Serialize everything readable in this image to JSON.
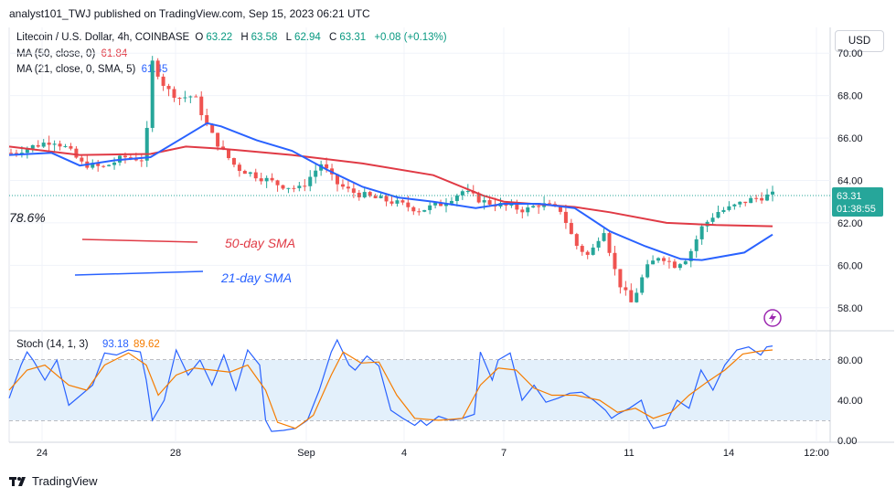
{
  "header": {
    "published": "analyst101_TWJ published on TradingView.com, Sep 15, 2023 06:21 UTC"
  },
  "legend": {
    "symbol": "Litecoin / U.S. Dollar, 4h, COINBASE",
    "o_label": "O",
    "o": "63.22",
    "h_label": "H",
    "h": "63.58",
    "l_label": "L",
    "l": "62.94",
    "c_label": "C",
    "c": "63.31",
    "change": "+0.08 (+0.13%)",
    "ma50_label": "MA (50, close, 0)",
    "ma50_value": "61.84",
    "ma21_label": "MA (21, close, 0, SMA, 5)",
    "ma21_value": "61.45"
  },
  "currency": "USD",
  "price_tag": {
    "value": "63.31",
    "countdown": "01:38:55"
  },
  "annotations": {
    "fib": "78.6%",
    "sma50": "50-day SMA",
    "sma21": "21-day SMA"
  },
  "stoch": {
    "label": "Stoch (14, 1, 3)",
    "k": "93.18",
    "d": "89.62"
  },
  "footer": {
    "brand": "TradingView"
  },
  "colors": {
    "up": "#26a69a",
    "down": "#ef5350",
    "ma50": "#e03a45",
    "ma21": "#2962ff",
    "stoch_k": "#2962ff",
    "stoch_d": "#f57c00",
    "band": "#e3f0fb"
  },
  "chart_data": {
    "type": "candlestick",
    "price_axis": {
      "range": [
        57,
        71
      ],
      "ticks": [
        "70.00",
        "68.00",
        "66.00",
        "64.00",
        "62.00",
        "60.00",
        "58.00"
      ]
    },
    "time_axis": {
      "ticks": [
        "24",
        "28",
        "Sep",
        "4",
        "7",
        "11",
        "14",
        "12:00"
      ]
    },
    "stoch_axis": {
      "range": [
        0,
        100
      ],
      "ticks": [
        "80.00",
        "40.00",
        "0.00"
      ],
      "band": [
        20,
        80
      ]
    },
    "price_path": [
      [
        0,
        65.3
      ],
      [
        3,
        65.6
      ],
      [
        6,
        65.9
      ],
      [
        8,
        65.5
      ],
      [
        10,
        64.8
      ],
      [
        13,
        64.6
      ],
      [
        16,
        65.1
      ],
      [
        19,
        65.0
      ],
      [
        20,
        69.6
      ],
      [
        22,
        68.3
      ],
      [
        24,
        67.9
      ],
      [
        26,
        68.0
      ],
      [
        28,
        66.4
      ],
      [
        30,
        65.4
      ],
      [
        32,
        64.6
      ],
      [
        35,
        64.2
      ],
      [
        38,
        63.8
      ],
      [
        41,
        63.6
      ],
      [
        44,
        64.8
      ],
      [
        46,
        63.9
      ],
      [
        48,
        63.5
      ],
      [
        51,
        63.2
      ],
      [
        54,
        63.0
      ],
      [
        56,
        62.8
      ],
      [
        58,
        62.6
      ],
      [
        61,
        62.9
      ],
      [
        64,
        63.5
      ],
      [
        67,
        63.0
      ],
      [
        70,
        62.8
      ],
      [
        73,
        62.6
      ],
      [
        75,
        62.9
      ],
      [
        78,
        62.6
      ],
      [
        80,
        61.0
      ],
      [
        82,
        60.4
      ],
      [
        84,
        61.8
      ],
      [
        86,
        59.3
      ],
      [
        88,
        58.2
      ],
      [
        90,
        59.8
      ],
      [
        92,
        60.5
      ],
      [
        94,
        60.0
      ],
      [
        96,
        60.4
      ],
      [
        98,
        61.8
      ],
      [
        100,
        62.5
      ],
      [
        102,
        62.7
      ],
      [
        104,
        63.0
      ],
      [
        106,
        63.2
      ],
      [
        108,
        63.31
      ]
    ],
    "ma50": [
      [
        0,
        65.6
      ],
      [
        10,
        65.2
      ],
      [
        20,
        65.25
      ],
      [
        25,
        65.6
      ],
      [
        30,
        65.5
      ],
      [
        40,
        65.2
      ],
      [
        50,
        64.8
      ],
      [
        60,
        64.25
      ],
      [
        67,
        63.3
      ],
      [
        70,
        63.0
      ],
      [
        80,
        62.75
      ],
      [
        85,
        62.5
      ],
      [
        93,
        62.0
      ],
      [
        100,
        61.9
      ],
      [
        108,
        61.84
      ]
    ],
    "ma21": [
      [
        0,
        65.2
      ],
      [
        6,
        65.3
      ],
      [
        10,
        64.7
      ],
      [
        15,
        64.95
      ],
      [
        20,
        65.1
      ],
      [
        25,
        66.1
      ],
      [
        28,
        66.7
      ],
      [
        30,
        66.55
      ],
      [
        35,
        65.9
      ],
      [
        40,
        65.4
      ],
      [
        45,
        64.5
      ],
      [
        50,
        63.7
      ],
      [
        55,
        63.2
      ],
      [
        60,
        63.0
      ],
      [
        66,
        62.7
      ],
      [
        70,
        62.9
      ],
      [
        75,
        62.9
      ],
      [
        80,
        62.7
      ],
      [
        85,
        61.6
      ],
      [
        90,
        60.9
      ],
      [
        95,
        60.3
      ],
      [
        98,
        60.25
      ],
      [
        104,
        60.6
      ],
      [
        108,
        61.45
      ]
    ],
    "stoch_k": [
      [
        0,
        42
      ],
      [
        2,
        75
      ],
      [
        3,
        88
      ],
      [
        4,
        80
      ],
      [
        6,
        60
      ],
      [
        8,
        80
      ],
      [
        10,
        35
      ],
      [
        12,
        45
      ],
      [
        14,
        55
      ],
      [
        16,
        87
      ],
      [
        18,
        85
      ],
      [
        20,
        90
      ],
      [
        22,
        88
      ],
      [
        23,
        60
      ],
      [
        24,
        20
      ],
      [
        26,
        40
      ],
      [
        28,
        90
      ],
      [
        30,
        65
      ],
      [
        32,
        80
      ],
      [
        34,
        55
      ],
      [
        36,
        85
      ],
      [
        38,
        50
      ],
      [
        40,
        90
      ],
      [
        42,
        75
      ],
      [
        43,
        20
      ],
      [
        44,
        9
      ],
      [
        46,
        10
      ],
      [
        48,
        12
      ],
      [
        50,
        20
      ],
      [
        52,
        50
      ],
      [
        54,
        88
      ],
      [
        55,
        100
      ],
      [
        57,
        75
      ],
      [
        58,
        70
      ],
      [
        60,
        84
      ],
      [
        62,
        74
      ],
      [
        64,
        30
      ],
      [
        66,
        22
      ],
      [
        68,
        15
      ],
      [
        69,
        20
      ],
      [
        70,
        15
      ],
      [
        72,
        24
      ],
      [
        74,
        20
      ],
      [
        76,
        22
      ],
      [
        78,
        26
      ],
      [
        79,
        88
      ],
      [
        81,
        60
      ],
      [
        82,
        80
      ],
      [
        84,
        87
      ],
      [
        86,
        40
      ],
      [
        88,
        55
      ],
      [
        90,
        38
      ],
      [
        92,
        42
      ],
      [
        94,
        47
      ],
      [
        96,
        48
      ],
      [
        98,
        40
      ],
      [
        100,
        30
      ],
      [
        101,
        22
      ],
      [
        102,
        26
      ],
      [
        104,
        32
      ],
      [
        106,
        40
      ],
      [
        107,
        22
      ],
      [
        108,
        12
      ],
      [
        110,
        15
      ],
      [
        112,
        40
      ],
      [
        114,
        32
      ],
      [
        116,
        70
      ],
      [
        118,
        50
      ],
      [
        120,
        75
      ],
      [
        122,
        90
      ],
      [
        124,
        93
      ],
      [
        126,
        85
      ],
      [
        127,
        93
      ],
      [
        128,
        94
      ]
    ],
    "stoch_d": [
      [
        0,
        50
      ],
      [
        3,
        70
      ],
      [
        6,
        75
      ],
      [
        10,
        55
      ],
      [
        13,
        50
      ],
      [
        16,
        75
      ],
      [
        20,
        87
      ],
      [
        23,
        75
      ],
      [
        25,
        45
      ],
      [
        28,
        65
      ],
      [
        31,
        72
      ],
      [
        34,
        70
      ],
      [
        37,
        68
      ],
      [
        40,
        75
      ],
      [
        43,
        50
      ],
      [
        45,
        18
      ],
      [
        48,
        12
      ],
      [
        51,
        25
      ],
      [
        54,
        65
      ],
      [
        56,
        88
      ],
      [
        59,
        77
      ],
      [
        62,
        78
      ],
      [
        65,
        45
      ],
      [
        68,
        22
      ],
      [
        72,
        20
      ],
      [
        76,
        22
      ],
      [
        79,
        55
      ],
      [
        82,
        72
      ],
      [
        85,
        70
      ],
      [
        88,
        52
      ],
      [
        91,
        45
      ],
      [
        95,
        45
      ],
      [
        99,
        40
      ],
      [
        102,
        28
      ],
      [
        105,
        32
      ],
      [
        108,
        22
      ],
      [
        111,
        28
      ],
      [
        114,
        45
      ],
      [
        117,
        58
      ],
      [
        120,
        70
      ],
      [
        123,
        86
      ],
      [
        126,
        89
      ],
      [
        128,
        90
      ]
    ]
  }
}
